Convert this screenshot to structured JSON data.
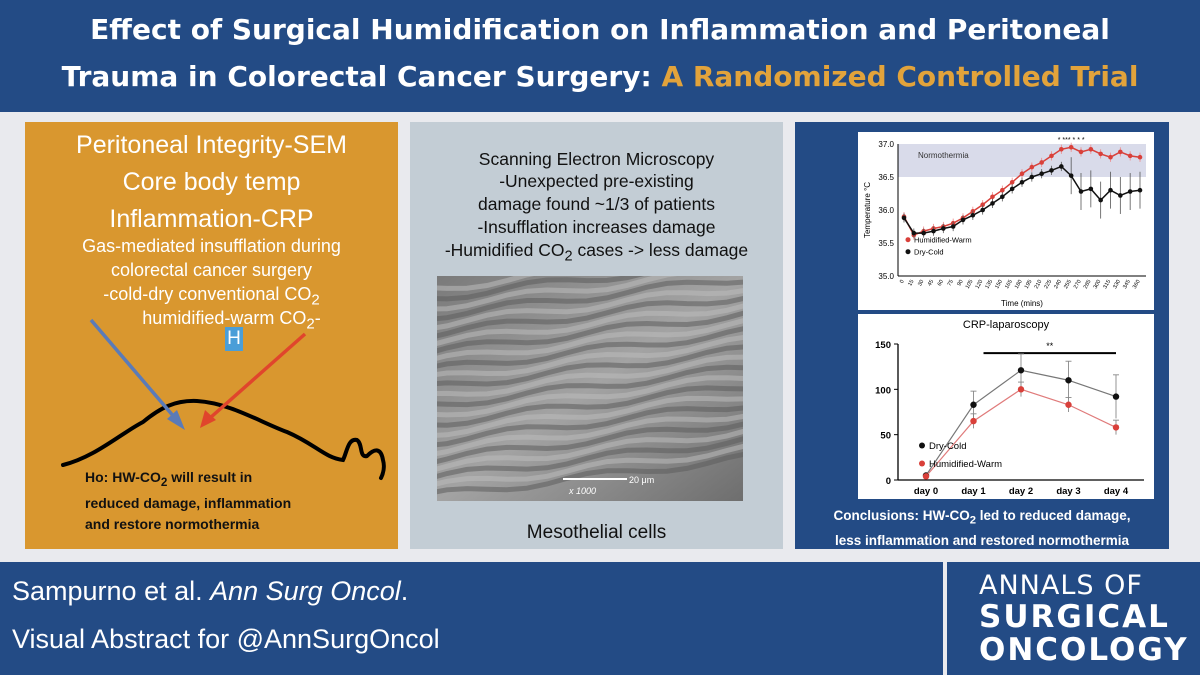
{
  "title": {
    "line1": "Effect of Surgical Humidification on Inflammation and Peritoneal",
    "line2_white": "Trauma in Colorectal Cancer Surgery: ",
    "line2_gold": "A Randomized Controlled Trial"
  },
  "left_panel": {
    "outcomes": [
      "Peritoneal Integrity-SEM",
      "Core body temp",
      "Inflammation-CRP"
    ],
    "intro": [
      "Gas-mediated insufflation during",
      "colorectal cancer surgery"
    ],
    "arm1": "-cold-dry conventional CO",
    "arm1_sub": "2",
    "arm2": "humidified-warm CO",
    "arm2_sub": "2",
    "arm2_suffix": "-",
    "h_label": "H",
    "hypothesis_a": "Ho: HW-CO",
    "hypothesis_sub": "2",
    "hypothesis_b": " will result in",
    "hypothesis_line2": "reduced damage, inflammation",
    "hypothesis_line3": "and restore normothermia"
  },
  "middle_panel": {
    "heading": "Scanning Electron Microscopy",
    "line1": "-Unexpected pre-existing",
    "line2": "damage found ~1/3 of patients",
    "line3": "-Insufflation increases damage",
    "line4_a": "-Humidified CO",
    "line4_sub": "2",
    "line4_b": " cases -> less damage",
    "scale_label": "20 μm",
    "mag_label": "x 1000",
    "caption": "Mesothelial cells"
  },
  "right_panel": {
    "conclusion_a": "Conclusions: HW-CO",
    "conclusion_sub": "2",
    "conclusion_b": " led to reduced damage,",
    "conclusion_line2": "less inflammation and restored normothermia"
  },
  "footer": {
    "cite_authors": "Sampurno et al. ",
    "cite_journal": "Ann Surg Oncol",
    "cite_period": ".",
    "visual_abstract": "Visual Abstract for @AnnSurgOncol",
    "logo_line1": "ANNALS OF",
    "logo_line2": "SURGICAL",
    "logo_line3": "ONCOLOGY"
  },
  "colors": {
    "navy": "#234b85",
    "gold_panel": "#d9972f",
    "gold_text": "#e2a33b",
    "grey_panel": "#c3cdd5",
    "series_warm": "#d9403a",
    "series_cold": "#111111",
    "arrow_blue": "#5b7bb8",
    "arrow_red": "#e0452c"
  },
  "chart_data": [
    {
      "type": "line",
      "ylabel": "Temperature °C",
      "xlabel": "Time (mins)",
      "ylim": [
        35.0,
        37.0
      ],
      "yticks": [
        "35.0",
        "35.5",
        "36.0",
        "36.5",
        "37.0"
      ],
      "band_label": "Normothermia",
      "band": [
        36.5,
        37.5
      ],
      "significance": "* *** * * *",
      "x": [
        "0",
        "15",
        "30",
        "45",
        "60",
        "75",
        "90",
        "105",
        "120",
        "135",
        "150",
        "165",
        "180",
        "195",
        "210",
        "225",
        "240",
        "255",
        "270",
        "285",
        "300",
        "315",
        "330",
        "345",
        "360"
      ],
      "series": [
        {
          "name": "Humidified-Warm",
          "values": [
            35.9,
            35.62,
            35.68,
            35.72,
            35.75,
            35.8,
            35.88,
            35.98,
            36.08,
            36.2,
            36.3,
            36.42,
            36.55,
            36.65,
            36.72,
            36.82,
            36.92,
            36.95,
            36.88,
            36.92,
            36.85,
            36.8,
            36.88,
            36.82,
            36.8
          ]
        },
        {
          "name": "Dry-Cold",
          "values": [
            35.88,
            35.65,
            35.65,
            35.68,
            35.72,
            35.75,
            35.85,
            35.92,
            36.0,
            36.1,
            36.2,
            36.32,
            36.42,
            36.5,
            36.55,
            36.6,
            36.66,
            36.52,
            36.28,
            36.32,
            36.15,
            36.3,
            36.22,
            36.28,
            36.3
          ]
        }
      ]
    },
    {
      "type": "line",
      "title": "CRP-laparoscopy",
      "ylim": [
        0,
        150
      ],
      "yticks": [
        "0",
        "50",
        "100",
        "150"
      ],
      "categories": [
        "day 0",
        "day 1",
        "day 2",
        "day 3",
        "day 4"
      ],
      "significance": "**",
      "series": [
        {
          "name": "Dry-Cold",
          "values": [
            5,
            83,
            121,
            110,
            92
          ]
        },
        {
          "name": "Humidified-Warm",
          "values": [
            4,
            65,
            100,
            83,
            58
          ]
        }
      ]
    }
  ]
}
